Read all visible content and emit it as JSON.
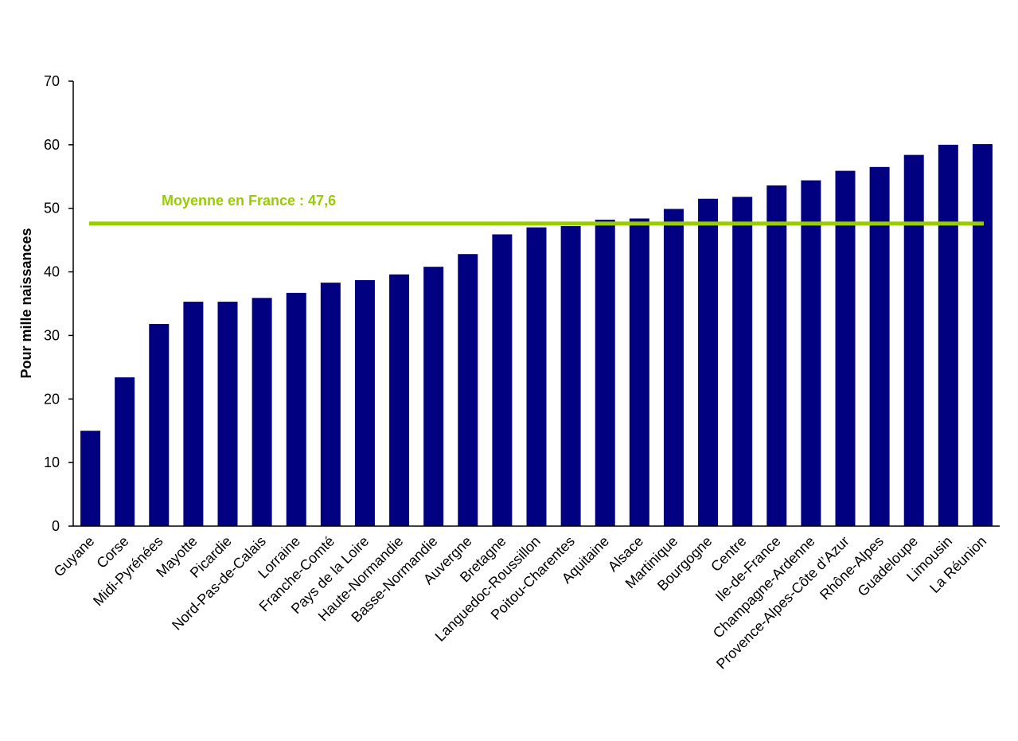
{
  "chart_data": {
    "type": "bar",
    "ylabel": "Pour mille naissances",
    "xlabel": "",
    "ylim": [
      0,
      70
    ],
    "yticks": [
      0,
      10,
      20,
      30,
      40,
      50,
      60,
      70
    ],
    "grid": false,
    "bar_color": "#000080",
    "categories": [
      "Guyane",
      "Corse",
      "Midi-Pyrénées",
      "Mayotte",
      "Picardie",
      "Nord-Pas-de-Calais",
      "Lorraine",
      "Franche-Comté",
      "Pays de la Loire",
      "Haute-Normandie",
      "Basse-Normandie",
      "Auvergne",
      "Bretagne",
      "Languedoc-Roussillon",
      "Poitou-Charentes",
      "Aquitaine",
      "Alsace",
      "Martinique",
      "Bourgogne",
      "Centre",
      "Ile-de-France",
      "Champagne-Ardenne",
      "Provence-Alpes-Côte d’Azur",
      "Rhône-Alpes",
      "Guadeloupe",
      "Limousin",
      "La Réunion"
    ],
    "values": [
      15.0,
      23.4,
      31.8,
      35.3,
      35.3,
      35.9,
      36.7,
      38.3,
      38.7,
      39.6,
      40.8,
      42.8,
      45.9,
      47.0,
      47.2,
      48.2,
      48.4,
      49.9,
      51.5,
      51.8,
      53.6,
      54.4,
      55.9,
      56.5,
      58.4,
      60.0,
      60.1
    ],
    "reference_line": {
      "value": 47.6,
      "label": "Moyenne en France : 47,6",
      "color": "#99CC00"
    }
  }
}
